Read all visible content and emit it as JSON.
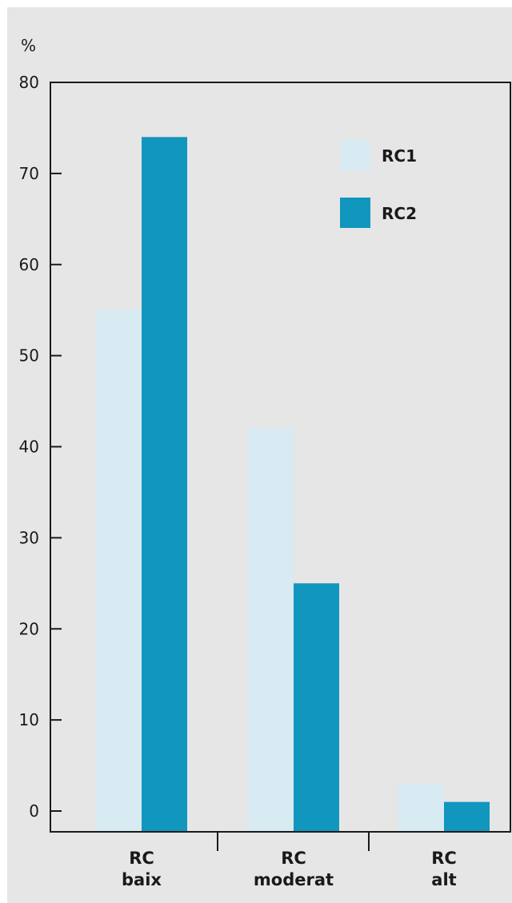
{
  "chart_data": {
    "type": "bar",
    "title": "",
    "ylabel": "%",
    "xlabel": "",
    "ylim": [
      0,
      80
    ],
    "yticks": [
      0,
      10,
      20,
      30,
      40,
      50,
      60,
      70,
      80
    ],
    "categories": [
      [
        "RC",
        "baix"
      ],
      [
        "RC",
        "moderat"
      ],
      [
        "RC",
        "alt"
      ]
    ],
    "series": [
      {
        "name": "RC1",
        "color": "#d8eaf2",
        "values": [
          55,
          42,
          3
        ]
      },
      {
        "name": "RC2",
        "color": "#1196be",
        "values": [
          74,
          25,
          1
        ]
      }
    ],
    "legend_position": "top-right",
    "grid": false,
    "background": "#e6e6e6"
  }
}
